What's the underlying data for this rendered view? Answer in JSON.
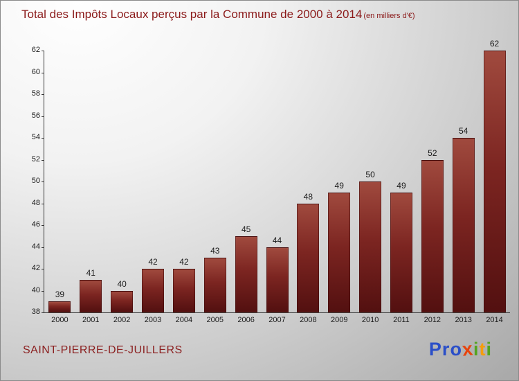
{
  "header": {
    "title": "Total des Impôts Locaux perçus par la Commune de 2000 à 2014",
    "subtitle": "(en milliers d'€)",
    "color": "#8b1a1a"
  },
  "chart_data": {
    "type": "bar",
    "title": "Total des Impôts Locaux perçus par la Commune de 2000 à 2014 (en milliers d'€)",
    "categories": [
      "2000",
      "2001",
      "2002",
      "2003",
      "2004",
      "2005",
      "2006",
      "2007",
      "2008",
      "2009",
      "2010",
      "2011",
      "2012",
      "2013",
      "2014"
    ],
    "values": [
      39,
      41,
      40,
      42,
      42,
      43,
      45,
      44,
      48,
      49,
      50,
      49,
      52,
      54,
      62
    ],
    "xlabel": "",
    "ylabel": "",
    "ylim": [
      38,
      62
    ],
    "ytick_step": 2,
    "grid": false,
    "legend_position": "none",
    "bar_color_top": "#a04a3e",
    "bar_color_bottom": "#531010",
    "value_label_color": "#1a1a1a",
    "axis_color": "#333333"
  },
  "footer": {
    "commune": "SAINT-PIERRE-DE-JUILLERS",
    "commune_color": "#8b1f1f"
  },
  "logo": {
    "name": "Proxiti",
    "letters": [
      {
        "ch": "P",
        "color": "#2b4fc8"
      },
      {
        "ch": "r",
        "color": "#2b4fc8"
      },
      {
        "ch": "o",
        "color": "#2b4fc8"
      },
      {
        "ch": "x",
        "color": "#e8430c"
      },
      {
        "ch": "i",
        "color": "#53a41e"
      },
      {
        "ch": "t",
        "color": "#f59d0e"
      },
      {
        "ch": "i",
        "color": "#53a41e"
      }
    ]
  }
}
